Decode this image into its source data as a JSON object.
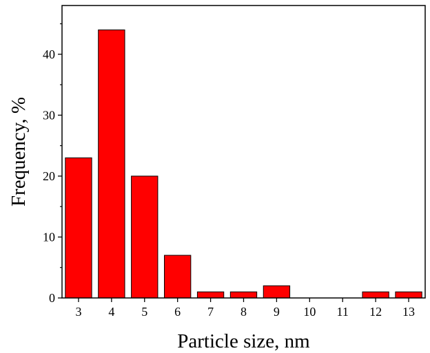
{
  "chart_data": {
    "type": "bar",
    "categories": [
      "3",
      "4",
      "5",
      "6",
      "7",
      "8",
      "9",
      "10",
      "11",
      "12",
      "13"
    ],
    "x": [
      3,
      4,
      5,
      6,
      7,
      8,
      9,
      10,
      11,
      12,
      13
    ],
    "values": [
      23,
      44,
      20,
      7,
      1,
      1,
      2,
      0,
      0,
      1,
      1
    ],
    "xlabel": "Particle size, nm",
    "ylabel": "Frequency, %",
    "ylim": [
      0,
      48
    ],
    "xlim": [
      2.5,
      13.5
    ],
    "yticks": [
      0,
      10,
      20,
      30,
      40
    ],
    "grid": false,
    "bar_color": "#ff0000",
    "bar_edge_color": "#000000"
  }
}
